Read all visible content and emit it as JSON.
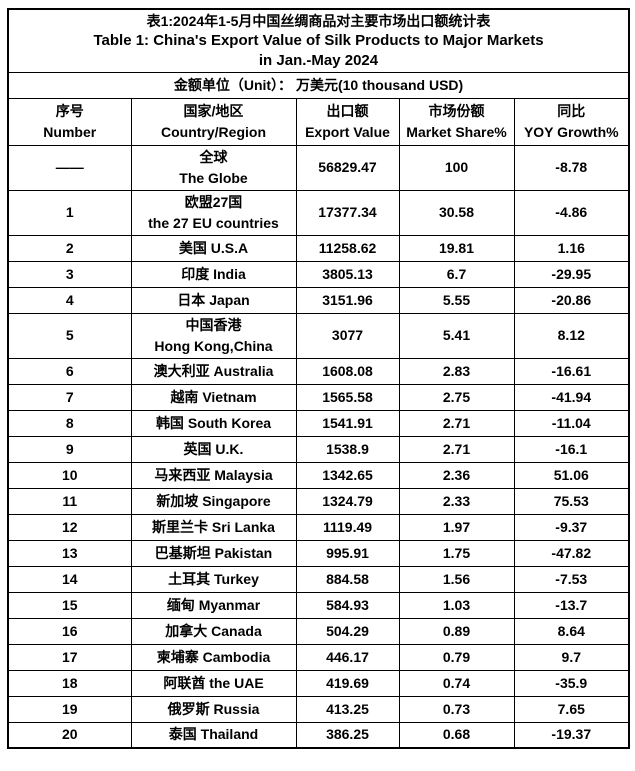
{
  "colors": {
    "background": "#ffffff",
    "border": "#000000",
    "text": "#000000"
  },
  "title": {
    "line1_zh": "表1:2024年1-5月中国丝绸商品对主要市场出口额统计表",
    "line2_en": "Table 1: China's Export Value of Silk Products to Major Markets",
    "line3_en": "in Jan.-May 2024"
  },
  "unit_note": "金额单位（Unit）： 万美元(10 thousand USD)",
  "chart_data": {
    "type": "table",
    "title": "表1:2024年1-5月中国丝绸商品对主要市场出口额统计表 / Table 1: China's Export Value of Silk Products to Major Markets in Jan.-May 2024",
    "unit": "万美元 (10 thousand USD)",
    "columns": [
      {
        "zh": "序号",
        "en": "Number"
      },
      {
        "zh": "国家/地区",
        "en": "Country/Region"
      },
      {
        "zh": "出口额",
        "en": "Export Value"
      },
      {
        "zh": "市场份额",
        "en": "Market Share%"
      },
      {
        "zh": "同比",
        "en": "YOY Growth%"
      }
    ],
    "rows": [
      {
        "number": "——",
        "country_lines": [
          "全球",
          "The Globe"
        ],
        "export_value": "56829.47",
        "market_share": "100",
        "yoy_growth": "-8.78"
      },
      {
        "number": "1",
        "country_lines": [
          "欧盟27国",
          "the 27 EU countries"
        ],
        "export_value": "17377.34",
        "market_share": "30.58",
        "yoy_growth": "-4.86"
      },
      {
        "number": "2",
        "country_lines": [
          "美国 U.S.A"
        ],
        "export_value": "11258.62",
        "market_share": "19.81",
        "yoy_growth": "1.16"
      },
      {
        "number": "3",
        "country_lines": [
          "印度 India"
        ],
        "export_value": "3805.13",
        "market_share": "6.7",
        "yoy_growth": "-29.95"
      },
      {
        "number": "4",
        "country_lines": [
          "日本 Japan"
        ],
        "export_value": "3151.96",
        "market_share": "5.55",
        "yoy_growth": "-20.86"
      },
      {
        "number": "5",
        "country_lines": [
          "中国香港",
          "Hong Kong,China"
        ],
        "export_value": "3077",
        "market_share": "5.41",
        "yoy_growth": "8.12"
      },
      {
        "number": "6",
        "country_lines": [
          "澳大利亚 Australia"
        ],
        "export_value": "1608.08",
        "market_share": "2.83",
        "yoy_growth": "-16.61"
      },
      {
        "number": "7",
        "country_lines": [
          "越南 Vietnam"
        ],
        "export_value": "1565.58",
        "market_share": "2.75",
        "yoy_growth": "-41.94"
      },
      {
        "number": "8",
        "country_lines": [
          "韩国 South Korea"
        ],
        "export_value": "1541.91",
        "market_share": "2.71",
        "yoy_growth": "-11.04"
      },
      {
        "number": "9",
        "country_lines": [
          "英国 U.K."
        ],
        "export_value": "1538.9",
        "market_share": "2.71",
        "yoy_growth": "-16.1"
      },
      {
        "number": "10",
        "country_lines": [
          "马来西亚 Malaysia"
        ],
        "export_value": "1342.65",
        "market_share": "2.36",
        "yoy_growth": "51.06"
      },
      {
        "number": "11",
        "country_lines": [
          "新加坡 Singapore"
        ],
        "export_value": "1324.79",
        "market_share": "2.33",
        "yoy_growth": "75.53"
      },
      {
        "number": "12",
        "country_lines": [
          "斯里兰卡 Sri Lanka"
        ],
        "export_value": "1119.49",
        "market_share": "1.97",
        "yoy_growth": "-9.37"
      },
      {
        "number": "13",
        "country_lines": [
          "巴基斯坦 Pakistan"
        ],
        "export_value": "995.91",
        "market_share": "1.75",
        "yoy_growth": "-47.82"
      },
      {
        "number": "14",
        "country_lines": [
          "土耳其 Turkey"
        ],
        "export_value": "884.58",
        "market_share": "1.56",
        "yoy_growth": "-7.53"
      },
      {
        "number": "15",
        "country_lines": [
          "缅甸 Myanmar"
        ],
        "export_value": "584.93",
        "market_share": "1.03",
        "yoy_growth": "-13.7"
      },
      {
        "number": "16",
        "country_lines": [
          "加拿大 Canada"
        ],
        "export_value": "504.29",
        "market_share": "0.89",
        "yoy_growth": "8.64"
      },
      {
        "number": "17",
        "country_lines": [
          "柬埔寨 Cambodia"
        ],
        "export_value": "446.17",
        "market_share": "0.79",
        "yoy_growth": "9.7"
      },
      {
        "number": "18",
        "country_lines": [
          "阿联酋 the UAE"
        ],
        "export_value": "419.69",
        "market_share": "0.74",
        "yoy_growth": "-35.9"
      },
      {
        "number": "19",
        "country_lines": [
          "俄罗斯 Russia"
        ],
        "export_value": "413.25",
        "market_share": "0.73",
        "yoy_growth": "7.65"
      },
      {
        "number": "20",
        "country_lines": [
          "泰国 Thailand"
        ],
        "export_value": "386.25",
        "market_share": "0.68",
        "yoy_growth": "-19.37"
      }
    ]
  }
}
